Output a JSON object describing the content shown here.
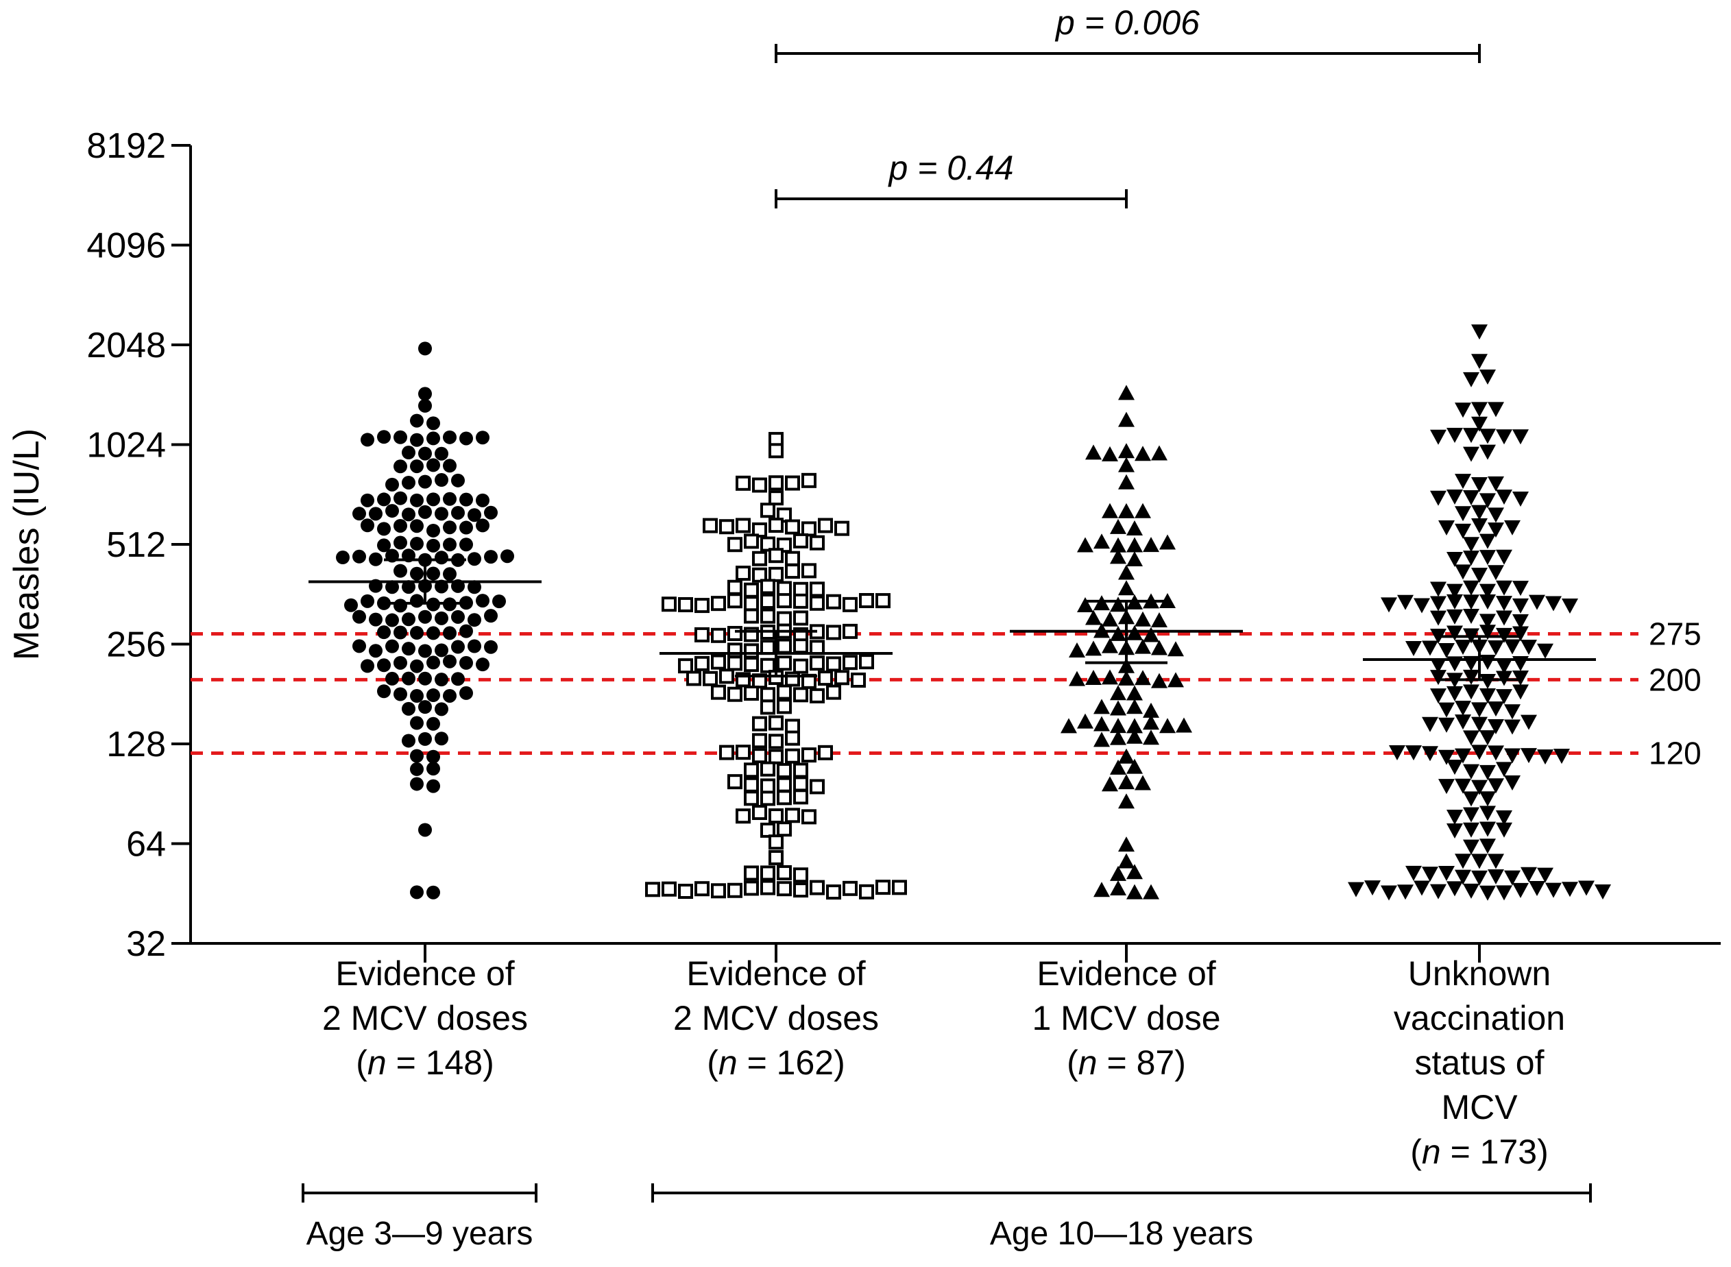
{
  "chart_data": {
    "type": "scatter",
    "subtype": "dot-plot",
    "title": "",
    "ylabel": "Measles (IU/L)",
    "xlabel": "",
    "yscale": "log2",
    "ylim": [
      32,
      8192
    ],
    "yticks": [
      32,
      64,
      128,
      256,
      512,
      1024,
      2048,
      4096,
      8192
    ],
    "groups": [
      {
        "lines": [
          "Evidence of",
          "2 MCV doses"
        ],
        "n_prefix": "(",
        "n_italic": "n",
        "n_suffix": " = 148)",
        "marker": "circle",
        "fill": "filled",
        "gmt": 395,
        "ci": [
          340,
          460
        ]
      },
      {
        "lines": [
          "Evidence of",
          "2 MCV doses"
        ],
        "n_prefix": "(",
        "n_italic": "n",
        "n_suffix": " = 162)",
        "marker": "square",
        "fill": "open",
        "gmt": 240,
        "ci": [
          205,
          280
        ]
      },
      {
        "lines": [
          "Evidence of",
          "1 MCV dose"
        ],
        "n_prefix": "(",
        "n_italic": "n",
        "n_suffix": " = 87)",
        "marker": "triangle-up",
        "fill": "filled",
        "gmt": 280,
        "ci": [
          225,
          345
        ]
      },
      {
        "lines": [
          "Unknown",
          "vaccination",
          "status of",
          "MCV"
        ],
        "n_prefix": "(",
        "n_italic": "n",
        "n_suffix": " = 173)",
        "marker": "triangle-down",
        "fill": "filled",
        "gmt": 230,
        "ci": [
          200,
          270
        ]
      }
    ],
    "reference_lines": [
      {
        "value": 275,
        "label": "275",
        "color": "#e31a1c"
      },
      {
        "value": 200,
        "label": "200",
        "color": "#e31a1c"
      },
      {
        "value": 120,
        "label": "120",
        "color": "#e31a1c"
      }
    ],
    "comparisons": [
      {
        "from_group": 1,
        "to_group": 2,
        "label": "p = 0.44"
      },
      {
        "from_group": 1,
        "to_group": 3,
        "label": "p = 0.006"
      }
    ],
    "age_brackets": [
      {
        "label": "Age 3—9 years",
        "groups": [
          0
        ]
      },
      {
        "label": "Age 10—18 years",
        "groups": [
          1,
          2,
          3
        ]
      }
    ]
  }
}
